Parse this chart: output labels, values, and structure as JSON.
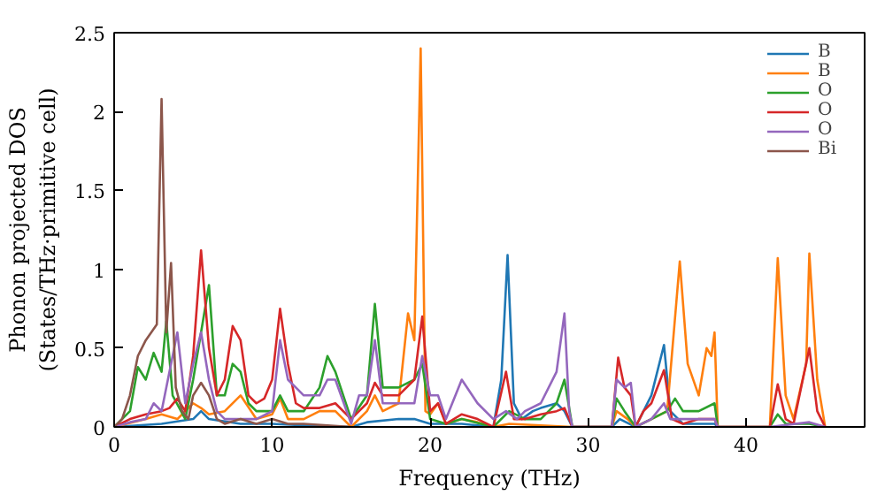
{
  "chart_data": {
    "type": "line",
    "xlabel": "Frequency (THz)",
    "ylabel": "Phonon projected DOS\n(States/THz·primitive cell)",
    "xlim": [
      0,
      47.5
    ],
    "ylim": [
      0,
      2.5
    ],
    "xticks": [
      0,
      10,
      20,
      30,
      40
    ],
    "yticks": [
      0,
      0.5,
      1.0,
      1.5,
      2.0,
      2.5
    ],
    "grid": false,
    "legend": "top right",
    "marker": "none",
    "line_style": "solid",
    "series": [
      {
        "name": "B",
        "color": "#1f77b4",
        "x": [
          0,
          3,
          5,
          5.5,
          6,
          8,
          10,
          12,
          15,
          16,
          18,
          19,
          20,
          22,
          24,
          24.5,
          24.9,
          25.3,
          25.8,
          26.5,
          27,
          28,
          28.5,
          29,
          31.5,
          32,
          33,
          34,
          34.8,
          35.2,
          36,
          38,
          38.2
        ],
        "values": [
          0,
          0.02,
          0.05,
          0.1,
          0.05,
          0.02,
          0.02,
          0.01,
          0,
          0.03,
          0.05,
          0.05,
          0.02,
          0.02,
          0,
          0.3,
          1.09,
          0.15,
          0.05,
          0.1,
          0.12,
          0.15,
          0.1,
          0,
          0,
          0.05,
          0,
          0.2,
          0.52,
          0.1,
          0.02,
          0.02,
          0
        ]
      },
      {
        "name": "B",
        "color": "#ff7f0e",
        "x": [
          0,
          2,
          3,
          4,
          5,
          5.5,
          6,
          7,
          8,
          9,
          10,
          10.5,
          11,
          12,
          13,
          14,
          15,
          16,
          16.5,
          17,
          18,
          18.6,
          19,
          19.4,
          19.7,
          20,
          20.5,
          21,
          22,
          23,
          24,
          25,
          29,
          31.5,
          31.8,
          32.5,
          33,
          34,
          35,
          35.8,
          36.3,
          37,
          37.5,
          37.8,
          38,
          38.2,
          41.5,
          42,
          42.5,
          43,
          43.8,
          44,
          44.5,
          45
        ],
        "values": [
          0,
          0.05,
          0.08,
          0.05,
          0.15,
          0.12,
          0.08,
          0.1,
          0.2,
          0.05,
          0.08,
          0.18,
          0.05,
          0.05,
          0.1,
          0.1,
          0,
          0.1,
          0.2,
          0.1,
          0.15,
          0.72,
          0.55,
          2.4,
          0.1,
          0.08,
          0.15,
          0.02,
          0.05,
          0.03,
          0,
          0.02,
          0,
          0,
          0.1,
          0.05,
          0,
          0.05,
          0.1,
          1.05,
          0.4,
          0.2,
          0.5,
          0.45,
          0.6,
          0,
          0,
          1.07,
          0.2,
          0.05,
          0.4,
          1.1,
          0.3,
          0
        ]
      },
      {
        "name": "O",
        "color": "#2ca02c",
        "x": [
          0,
          1,
          1.5,
          2,
          2.5,
          3,
          3.3,
          3.7,
          4.5,
          5,
          5.5,
          6,
          6.5,
          7,
          7.5,
          8,
          8.5,
          9,
          10,
          10.5,
          11,
          12,
          13,
          13.5,
          14,
          15,
          16,
          16.5,
          17,
          18,
          19,
          19.5,
          20,
          21,
          22,
          24,
          25,
          26,
          27,
          28,
          28.5,
          29,
          31.5,
          31.8,
          32.3,
          33,
          34,
          35,
          35.5,
          36,
          37,
          38,
          38.2,
          41.5,
          42,
          42.5,
          44,
          45
        ],
        "values": [
          0,
          0.1,
          0.38,
          0.3,
          0.47,
          0.35,
          0.67,
          0.2,
          0.05,
          0.3,
          0.6,
          0.9,
          0.2,
          0.2,
          0.4,
          0.35,
          0.15,
          0.1,
          0.1,
          0.2,
          0.1,
          0.1,
          0.25,
          0.45,
          0.35,
          0.05,
          0.2,
          0.78,
          0.25,
          0.25,
          0.3,
          0.4,
          0.05,
          0.02,
          0.05,
          0,
          0.1,
          0.05,
          0.05,
          0.15,
          0.3,
          0,
          0,
          0.18,
          0.1,
          0,
          0.05,
          0.1,
          0.18,
          0.1,
          0.1,
          0.15,
          0,
          0,
          0.08,
          0.02,
          0.02,
          0
        ]
      },
      {
        "name": "O",
        "color": "#d62728",
        "x": [
          0,
          1,
          2,
          3,
          3.5,
          4,
          4.5,
          5,
          5.5,
          6,
          6.5,
          7,
          7.5,
          8,
          8.5,
          9,
          9.5,
          10,
          10.5,
          11,
          11.5,
          12,
          13,
          14,
          15,
          15.5,
          16,
          16.5,
          17,
          18,
          19,
          19.5,
          20,
          20.5,
          21,
          22,
          23,
          24,
          24.8,
          25.3,
          26,
          27,
          28,
          28.5,
          29,
          31.5,
          31.9,
          32.3,
          32.7,
          33,
          33.5,
          34,
          34.8,
          35.3,
          36,
          37,
          38,
          38.2,
          41.5,
          42,
          42.5,
          43,
          44,
          44.5,
          45
        ],
        "values": [
          0,
          0.05,
          0.08,
          0.1,
          0.12,
          0.18,
          0.1,
          0.45,
          1.12,
          0.5,
          0.2,
          0.3,
          0.64,
          0.55,
          0.2,
          0.15,
          0.18,
          0.3,
          0.75,
          0.4,
          0.15,
          0.12,
          0.12,
          0.15,
          0.05,
          0.1,
          0.15,
          0.28,
          0.2,
          0.2,
          0.3,
          0.7,
          0.1,
          0.15,
          0.02,
          0.08,
          0.05,
          0,
          0.35,
          0.05,
          0.05,
          0.08,
          0.1,
          0.12,
          0,
          0,
          0.44,
          0.25,
          0.2,
          0,
          0.1,
          0.15,
          0.36,
          0.05,
          0.02,
          0.05,
          0.05,
          0,
          0,
          0.27,
          0.05,
          0.02,
          0.5,
          0.1,
          0
        ]
      },
      {
        "name": "O",
        "color": "#9467bd",
        "x": [
          0,
          1,
          2,
          2.5,
          3,
          4,
          4.5,
          5,
          5.5,
          6,
          6.5,
          7,
          8,
          9,
          10,
          10.5,
          11,
          12,
          13,
          13.5,
          14,
          15,
          15.5,
          16,
          16.5,
          17,
          18,
          19,
          19.5,
          20,
          20.5,
          21,
          22,
          23,
          24,
          24.8,
          25.5,
          26,
          27,
          28,
          28.5,
          28.8,
          29,
          31.5,
          31.8,
          32.3,
          32.7,
          33,
          34,
          34.8,
          35.2,
          36,
          38,
          38.2,
          41.5,
          44,
          45
        ],
        "values": [
          0,
          0.03,
          0.05,
          0.15,
          0.1,
          0.6,
          0.15,
          0.4,
          0.6,
          0.3,
          0.1,
          0.05,
          0.05,
          0.05,
          0.1,
          0.55,
          0.3,
          0.2,
          0.2,
          0.3,
          0.3,
          0.02,
          0.2,
          0.2,
          0.55,
          0.15,
          0.15,
          0.15,
          0.45,
          0.2,
          0.2,
          0.05,
          0.3,
          0.15,
          0.05,
          0.1,
          0.05,
          0.1,
          0.15,
          0.35,
          0.72,
          0.1,
          0,
          0,
          0.3,
          0.25,
          0.28,
          0,
          0.05,
          0.15,
          0.05,
          0.05,
          0.05,
          0,
          0,
          0.03,
          0
        ]
      },
      {
        "name": "Bi",
        "color": "#8c564b",
        "x": [
          0,
          0.5,
          1,
          1.5,
          2,
          2.7,
          3,
          3.3,
          3.6,
          3.9,
          4.3,
          4.7,
          5,
          5.5,
          6,
          6.5,
          7,
          8,
          9,
          10,
          11,
          12,
          15
        ],
        "values": [
          0,
          0.05,
          0.2,
          0.45,
          0.55,
          0.65,
          2.08,
          0.6,
          1.04,
          0.25,
          0.1,
          0.05,
          0.2,
          0.28,
          0.2,
          0.05,
          0.02,
          0.05,
          0.02,
          0.05,
          0.02,
          0.02,
          0
        ]
      }
    ]
  }
}
